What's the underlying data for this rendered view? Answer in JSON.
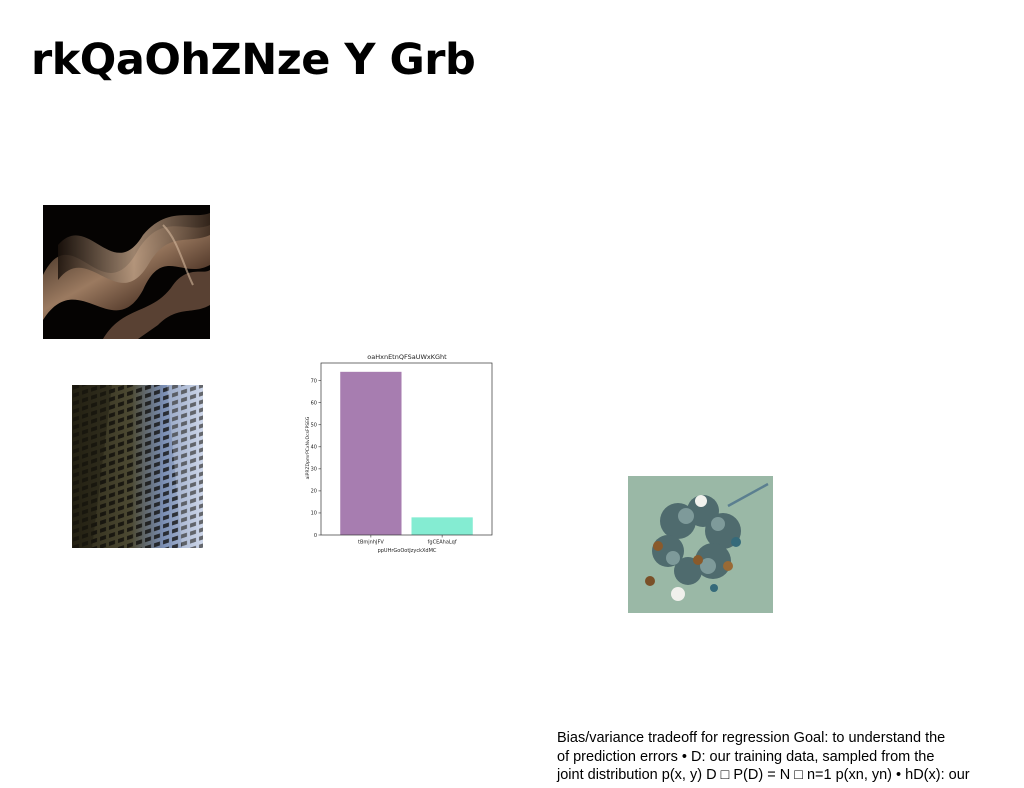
{
  "slide": {
    "title": "rkQaOhZNze Y Grb",
    "body_lines": [
      "Bias/variance tradeoff for regression Goal: to understand the",
      "of prediction errors • D: our training data, sampled from the",
      "joint distribution p(x, y) D □ P(D) = N □ n=1 p(xn, yn) • hD(x): our"
    ]
  },
  "images": [
    {
      "name": "abstract-bronze-waves-photo"
    },
    {
      "name": "building-facade-photo"
    },
    {
      "name": "ornament-wreath-photo"
    }
  ],
  "chart_data": {
    "type": "bar",
    "title": "oaHxnEtnQFSaUWxKGht",
    "xlabel": "ppUHrGoOotJzyckXdMC",
    "ylabel": "aiPRZDpmrPCxNvDcsFPSEG",
    "categories": [
      "tBmjnhJFV",
      "fgCEAhaLqf"
    ],
    "values": [
      74,
      8
    ],
    "colors": [
      "#a77db0",
      "#84ecd2"
    ],
    "ylim": [
      0,
      78
    ],
    "yticks": [
      0,
      10,
      20,
      30,
      40,
      50,
      60,
      70
    ],
    "grid": false
  }
}
